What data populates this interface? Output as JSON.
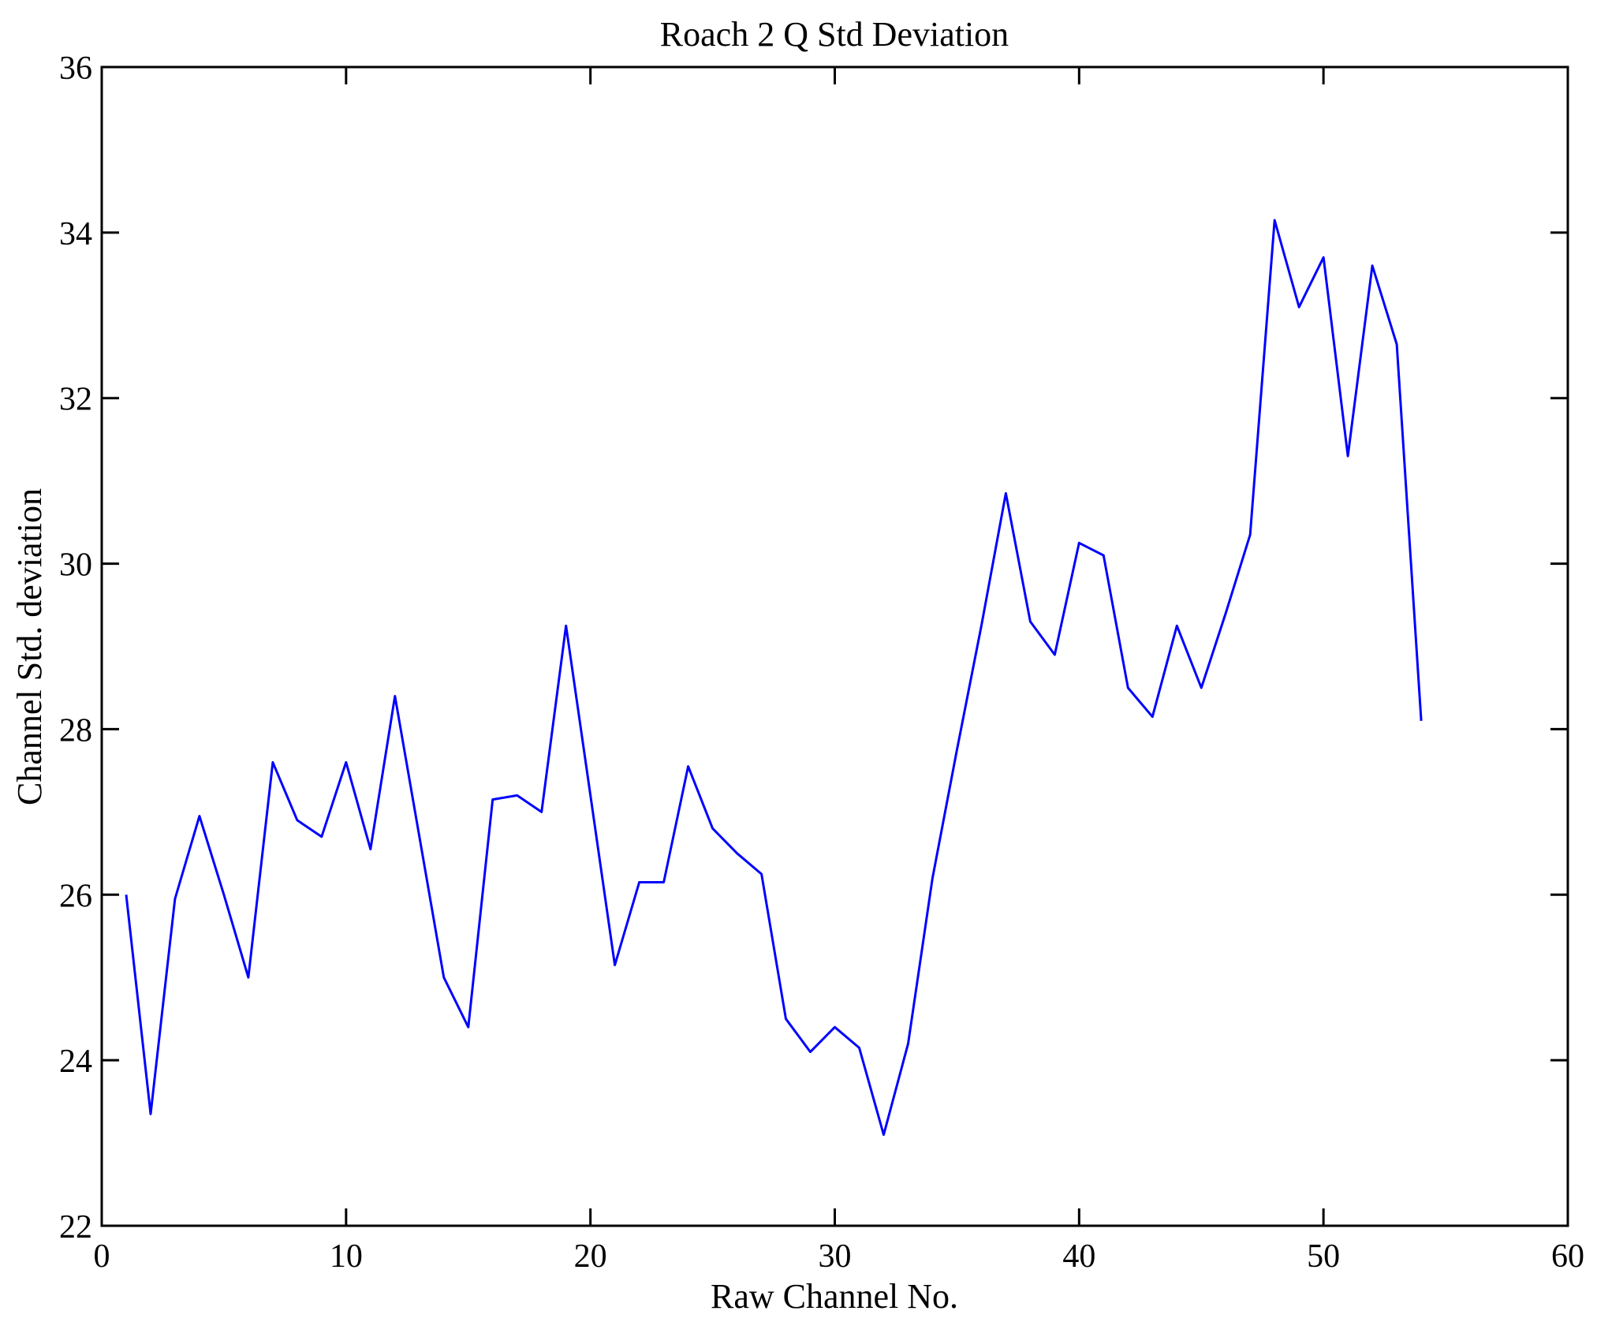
{
  "page": {
    "background_color": "#ffffff",
    "axis_color": "#000000",
    "text_color": "#000000"
  },
  "chart_data": {
    "type": "line",
    "title": "Roach 2 Q Std Deviation",
    "xlabel": "Raw Channel No.",
    "ylabel": "Channel Std. deviation",
    "xlim": [
      0,
      60
    ],
    "ylim": [
      22,
      36
    ],
    "xticks": [
      0,
      10,
      20,
      30,
      40,
      50,
      60
    ],
    "yticks": [
      22,
      24,
      26,
      28,
      30,
      32,
      34,
      36
    ],
    "grid": false,
    "legend_position": "none",
    "line_color": "#0000ff",
    "series": [
      {
        "name": "Channel Std. deviation",
        "x": [
          1,
          2,
          3,
          4,
          5,
          6,
          7,
          8,
          9,
          10,
          11,
          12,
          13,
          14,
          15,
          16,
          17,
          18,
          19,
          20,
          21,
          22,
          23,
          24,
          25,
          26,
          27,
          28,
          29,
          30,
          31,
          32,
          33,
          34,
          35,
          36,
          37,
          38,
          39,
          40,
          41,
          42,
          43,
          44,
          45,
          46,
          47,
          48,
          49,
          50,
          51,
          52,
          53,
          54
        ],
        "values": [
          26.0,
          23.35,
          25.95,
          26.95,
          26.0,
          25.0,
          27.6,
          26.9,
          26.7,
          27.6,
          26.55,
          28.4,
          26.7,
          25.0,
          24.4,
          27.15,
          27.2,
          27.0,
          29.25,
          27.2,
          25.15,
          26.15,
          26.15,
          27.55,
          26.8,
          26.5,
          26.25,
          24.5,
          24.1,
          24.4,
          24.15,
          23.1,
          24.2,
          26.2,
          27.75,
          29.25,
          30.85,
          29.3,
          28.9,
          30.25,
          30.1,
          28.5,
          28.15,
          29.25,
          28.5,
          29.4,
          30.35,
          34.15,
          33.1,
          33.7,
          31.3,
          33.6,
          32.65,
          28.1
        ]
      }
    ]
  }
}
